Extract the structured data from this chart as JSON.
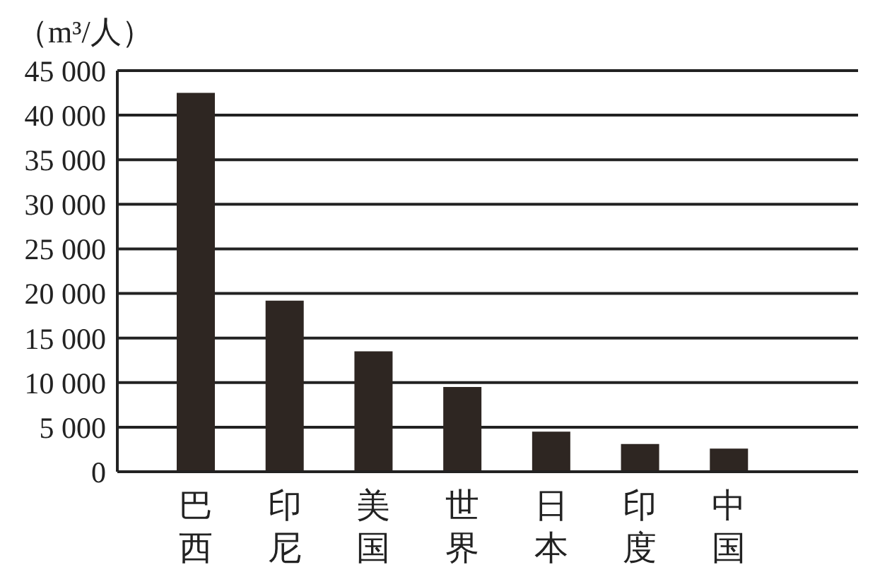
{
  "chart_data": {
    "type": "bar",
    "ylabel": "（m³/人）",
    "categories": [
      "巴西",
      "印尼",
      "美国",
      "世界",
      "日本",
      "印度",
      "中国"
    ],
    "values": [
      42500,
      19200,
      13500,
      9500,
      4500,
      3100,
      2600
    ],
    "color": "#2e2622",
    "ylim": [
      0,
      45000
    ],
    "yticks": [
      {
        "value": 0,
        "label": "0"
      },
      {
        "value": 5000,
        "label": "5 000"
      },
      {
        "value": 10000,
        "label": "10 000"
      },
      {
        "value": 15000,
        "label": "15 000"
      },
      {
        "value": 20000,
        "label": "20 000"
      },
      {
        "value": 25000,
        "label": "25 000"
      },
      {
        "value": 30000,
        "label": "30 000"
      },
      {
        "value": 35000,
        "label": "35 000"
      },
      {
        "value": 40000,
        "label": "40 000"
      },
      {
        "value": 45000,
        "label": "45 000"
      }
    ],
    "grid": "y"
  }
}
